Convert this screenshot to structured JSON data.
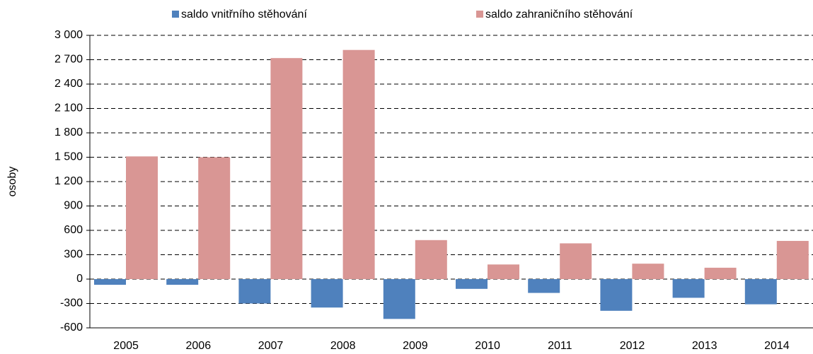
{
  "chart_data": {
    "type": "bar",
    "y_label": "osoby",
    "categories": [
      "2005",
      "2006",
      "2007",
      "2008",
      "2009",
      "2010",
      "2011",
      "2012",
      "2013",
      "2014"
    ],
    "series": [
      {
        "name": "saldo vnitřního stěhování",
        "color": "#4f81bd",
        "values": [
          -70,
          -70,
          -300,
          -350,
          -490,
          -120,
          -170,
          -390,
          -230,
          -310
        ]
      },
      {
        "name": "saldo zahraničního stěhování",
        "color": "#d99694",
        "values": [
          1510,
          1500,
          2720,
          2820,
          480,
          180,
          440,
          190,
          140,
          470
        ]
      }
    ],
    "ylim": [
      -600,
      3000
    ],
    "yticks": [
      -600,
      -300,
      0,
      300,
      600,
      900,
      {
        "value": 1200,
        "label": "1 200"
      },
      {
        "value": 1500,
        "label": "1 500"
      },
      {
        "value": 1800,
        "label": "1 800"
      },
      {
        "value": 2100,
        "label": "2 100"
      },
      {
        "value": 2400,
        "label": "2 400"
      },
      {
        "value": 2700,
        "label": "2 700"
      },
      {
        "value": 3000,
        "label": "3 000"
      }
    ],
    "grid": true
  }
}
